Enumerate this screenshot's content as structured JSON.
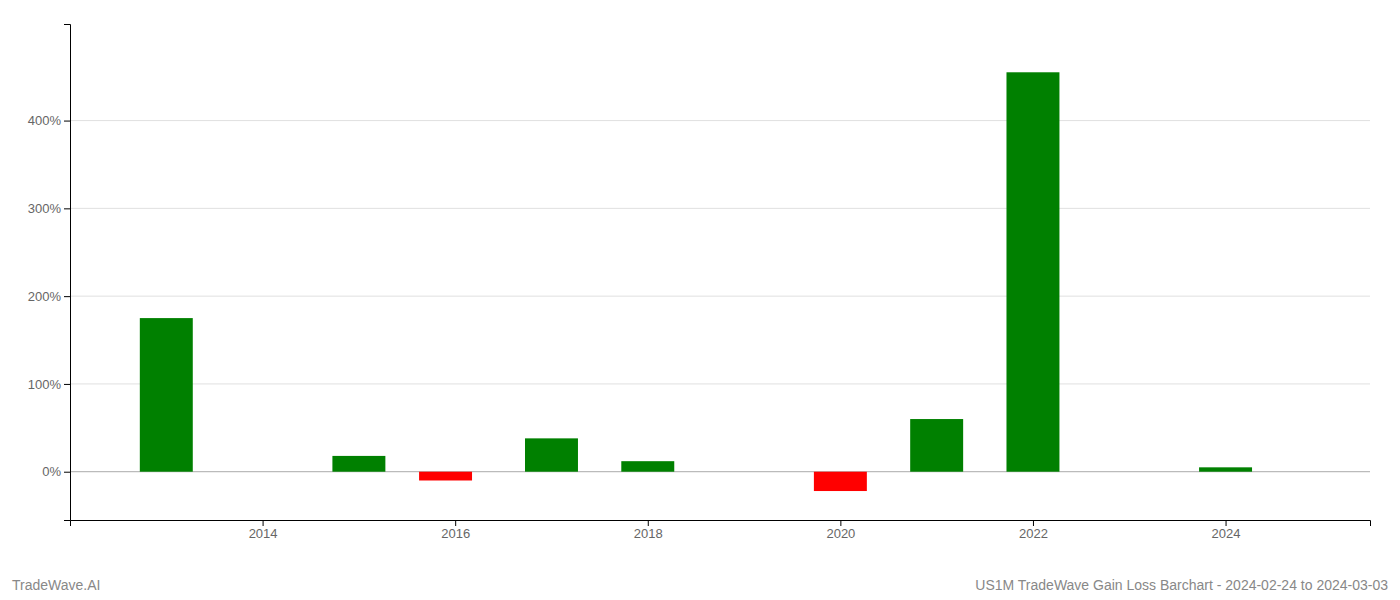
{
  "chart_data": {
    "type": "bar",
    "x": [
      2013,
      2015,
      2015.9,
      2017,
      2018,
      2020,
      2021,
      2022,
      2024
    ],
    "values": [
      1.75,
      0.18,
      -0.1,
      0.38,
      0.12,
      -0.22,
      0.6,
      4.55,
      0.05
    ],
    "colors": [
      "#008000",
      "#008000",
      "#ff0000",
      "#008000",
      "#008000",
      "#ff0000",
      "#008000",
      "#008000",
      "#008000"
    ],
    "xlim": [
      2012.0,
      2025.5
    ],
    "xticks": [
      2014,
      2016,
      2018,
      2020,
      2022,
      2024
    ],
    "ylim": [
      -0.55,
      5.1
    ],
    "yticks": [
      {
        "value": 0.0,
        "label": "0%"
      },
      {
        "value": 1.0,
        "label": "100%"
      },
      {
        "value": 2.0,
        "label": "200%"
      },
      {
        "value": 3.0,
        "label": "300%"
      },
      {
        "value": 4.0,
        "label": "400%"
      }
    ],
    "grid": true,
    "annotations": [
      "TradeWave.AI",
      "US1M TradeWave Gain Loss Barchart - 2024-02-24 to 2024-03-03"
    ]
  }
}
